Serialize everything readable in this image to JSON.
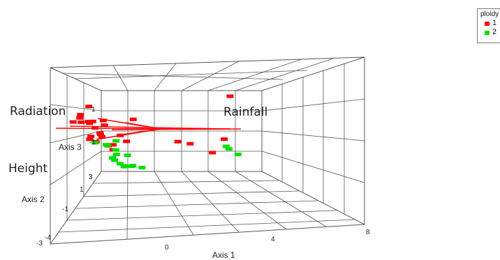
{
  "chart_data": {
    "type": "scatter",
    "title": "",
    "axis_titles": {
      "x": "Axis 1",
      "y": "Axis 2",
      "z": "Axis 3"
    },
    "x_ticks": [
      "-4",
      "0",
      "4",
      "8"
    ],
    "y_ticks": [
      "-3",
      "-1",
      "1",
      "3"
    ],
    "z_ticks": [
      "1",
      "-1"
    ],
    "grid": true,
    "legend": {
      "title": "ploidy",
      "placement": "top-right",
      "entries": [
        {
          "label": "1",
          "color": "#ff0000"
        },
        {
          "label": "2",
          "color": "#00e000"
        }
      ]
    },
    "vectors": [
      {
        "label": "Radiation",
        "color": "#ff0000"
      },
      {
        "label": "Rainfall",
        "color": "#ff0000"
      },
      {
        "label": "Height",
        "color": "#ff0000"
      }
    ],
    "series": [
      {
        "name": "1",
        "color": "#ff0000",
        "points": [
          [
            -3.9,
            2.5,
            1.5
          ],
          [
            -3.6,
            2.3,
            1.9
          ],
          [
            -3.2,
            2.2,
            2.4
          ],
          [
            -3.5,
            2.6,
            1.8
          ],
          [
            -3.0,
            2.7,
            1.6
          ],
          [
            -2.9,
            2.4,
            1.5
          ],
          [
            -2.3,
            2.5,
            1.6
          ],
          [
            -2.1,
            2.8,
            1.4
          ],
          [
            -3.7,
            2.0,
            1.3
          ],
          [
            -3.3,
            1.9,
            1.2
          ],
          [
            -3.0,
            1.9,
            0.9
          ],
          [
            -2.7,
            2.0,
            0.6
          ],
          [
            -2.8,
            1.7,
            0.4
          ],
          [
            -3.4,
            1.5,
            0.2
          ],
          [
            -2.9,
            1.3,
            0.1
          ],
          [
            -1.8,
            1.6,
            0.3
          ],
          [
            -3.6,
            1.2,
            -0.1
          ],
          [
            -3.3,
            1.1,
            -0.3
          ],
          [
            -2.4,
            1.1,
            -0.5
          ],
          [
            -1.6,
            1.3,
            -0.2
          ],
          [
            -2.7,
            1.0,
            -0.6
          ],
          [
            -2.5,
            0.9,
            -0.9
          ],
          [
            -0.8,
            2.3,
            1.6
          ],
          [
            4.2,
            2.0,
            3.0
          ],
          [
            0.9,
            0.8,
            -0.4
          ],
          [
            1.6,
            0.9,
            -0.5
          ],
          [
            3.0,
            1.4,
            -0.9
          ],
          [
            3.4,
            0.9,
            -0.2
          ]
        ]
      },
      {
        "name": "2",
        "color": "#00e000",
        "points": [
          [
            -3.4,
            1.0,
            -0.4
          ],
          [
            -2.9,
            0.8,
            -0.6
          ],
          [
            -2.2,
            1.2,
            -0.2
          ],
          [
            -3.0,
            0.4,
            -0.8
          ],
          [
            -2.7,
            0.1,
            -1.2
          ],
          [
            -2.8,
            -0.2,
            -1.6
          ],
          [
            -3.1,
            -0.4,
            -1.9
          ],
          [
            -2.4,
            -0.6,
            -1.8
          ],
          [
            -3.3,
            -1.1,
            -2.3
          ],
          [
            -3.1,
            -1.3,
            -2.6
          ],
          [
            -3.0,
            -1.6,
            -2.9
          ],
          [
            -3.2,
            -2.0,
            -3.0
          ],
          [
            -2.9,
            -2.2,
            -3.1
          ],
          [
            -3.0,
            -2.6,
            -3.2
          ],
          [
            -2.6,
            -2.8,
            -3.4
          ],
          [
            3.6,
            1.1,
            -0.6
          ],
          [
            3.7,
            1.0,
            -0.8
          ],
          [
            4.0,
            0.6,
            -1.3
          ]
        ]
      }
    ]
  }
}
